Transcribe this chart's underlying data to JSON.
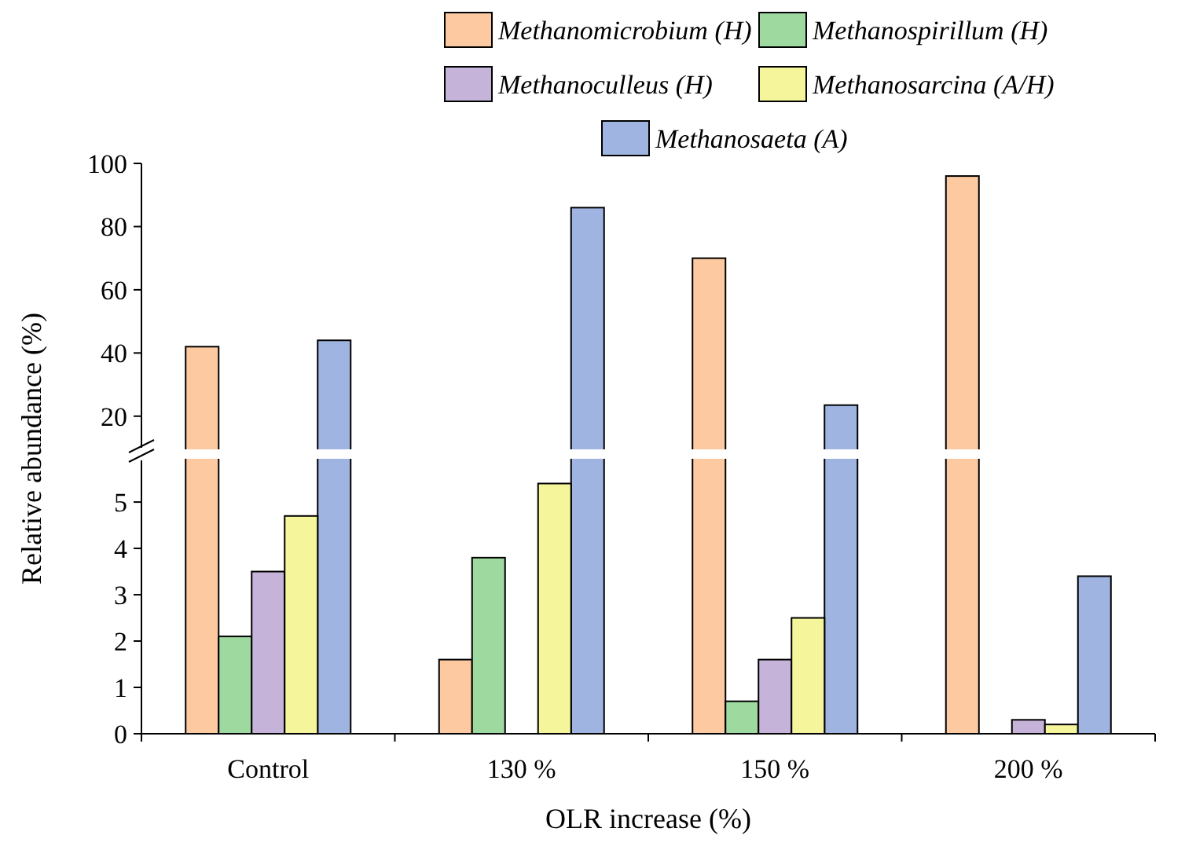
{
  "chart_data": [
    {
      "type": "bar",
      "ylabel": "Relative abundance (%)",
      "categories": [
        "Control",
        "130 %",
        "150 %",
        "200 %"
      ],
      "tick_labels": "y",
      "series": [
        {
          "name": "Methanomicrobium (H)",
          "color": "#fdc9a0",
          "values": [
            42,
            null,
            70,
            96
          ]
        },
        {
          "name": "Methanospirillum (H)",
          "color": "#9ed9a0",
          "values": [
            null,
            null,
            null,
            null
          ]
        },
        {
          "name": "Methanoculleus (H)",
          "color": "#c5b3d9",
          "values": [
            null,
            null,
            null,
            null
          ]
        },
        {
          "name": "Methanosarcina (A/H)",
          "color": "#f5f59b",
          "values": [
            null,
            null,
            null,
            null
          ]
        },
        {
          "name": "Methanosaeta (A)",
          "color": "#9fb4e0",
          "values": [
            44,
            86,
            23.5,
            null
          ]
        }
      ],
      "ylim": [
        10,
        100
      ],
      "yticks": [
        20,
        40,
        60,
        80,
        100
      ],
      "legend": "top"
    },
    {
      "type": "bar",
      "xlabel": "OLR increase (%)",
      "categories": [
        "Control",
        "130 %",
        "150 %",
        "200 %"
      ],
      "series": [
        {
          "color": "#fdc9a0",
          "values": [
            null,
            1.6,
            null,
            null
          ]
        },
        {
          "color": "#9ed9a0",
          "values": [
            2.1,
            3.8,
            0.7,
            null
          ]
        },
        {
          "color": "#c5b3d9",
          "values": [
            3.5,
            null,
            1.6,
            0.3
          ]
        },
        {
          "color": "#f5f59b",
          "values": [
            4.7,
            5.4,
            2.5,
            0.2
          ]
        },
        {
          "color": "#9fb4e0",
          "values": [
            null,
            null,
            null,
            3.4
          ]
        }
      ],
      "ylim": [
        0,
        5.9
      ],
      "yticks": [
        0,
        1,
        2,
        3,
        4,
        5
      ]
    }
  ]
}
